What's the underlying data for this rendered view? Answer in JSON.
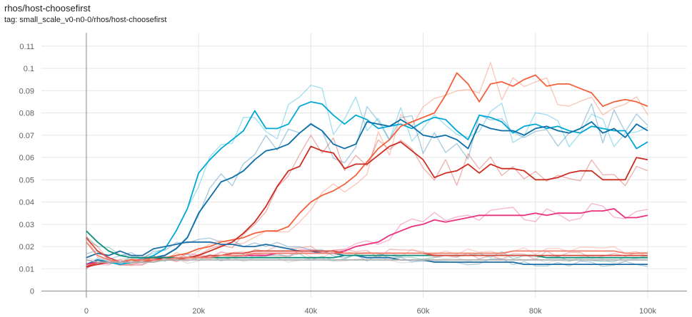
{
  "header": {
    "title": "rhos/host-choosefirst",
    "tag": "tag: small_scale_v0-n0-0/rhos/host-choosefirst"
  },
  "chart_data": {
    "type": "line",
    "title": "rhos/host-choosefirst",
    "xlabel": "",
    "ylabel": "",
    "xlim": [
      -8000,
      107000
    ],
    "ylim": [
      -0.003,
      0.116
    ],
    "grid": true,
    "x_ticks": [
      0,
      20000,
      40000,
      60000,
      80000,
      100000
    ],
    "x_tick_labels": [
      "0",
      "20k",
      "40k",
      "60k",
      "80k",
      "100k"
    ],
    "y_ticks": [
      0,
      0.01,
      0.02,
      0.03,
      0.04,
      0.05,
      0.06,
      0.07,
      0.08,
      0.09,
      0.1,
      0.11
    ],
    "y_tick_labels": [
      "0",
      "0.01",
      "0.02",
      "0.03",
      "0.04",
      "0.05",
      "0.06",
      "0.07",
      "0.08",
      "0.09",
      "0.1",
      "0.11"
    ],
    "series": [
      {
        "color": "#00a8d6",
        "x": [
          0,
          2000,
          4000,
          6000,
          8000,
          10000,
          12000,
          14000,
          16000,
          18000,
          20000,
          22000,
          24000,
          26000,
          28000,
          30000,
          32000,
          34000,
          36000,
          38000,
          40000,
          42000,
          44000,
          46000,
          48000,
          50000,
          52000,
          54000,
          56000,
          58000,
          60000,
          62000,
          64000,
          66000,
          68000,
          70000,
          72000,
          74000,
          76000,
          78000,
          80000,
          82000,
          84000,
          86000,
          88000,
          90000,
          92000,
          94000,
          96000,
          98000,
          100000
        ],
        "y": [
          0.012,
          0.014,
          0.013,
          0.012,
          0.013,
          0.014,
          0.016,
          0.019,
          0.027,
          0.037,
          0.053,
          0.059,
          0.064,
          0.068,
          0.072,
          0.081,
          0.073,
          0.073,
          0.075,
          0.083,
          0.085,
          0.084,
          0.079,
          0.075,
          0.079,
          0.077,
          0.073,
          0.074,
          0.075,
          0.073,
          0.076,
          0.078,
          0.077,
          0.072,
          0.068,
          0.079,
          0.078,
          0.076,
          0.071,
          0.074,
          0.075,
          0.073,
          0.074,
          0.072,
          0.071,
          0.074,
          0.073,
          0.072,
          0.072,
          0.064,
          0.067
        ]
      },
      {
        "color": "#0b6fa8",
        "x": [
          0,
          2000,
          4000,
          6000,
          8000,
          10000,
          12000,
          14000,
          16000,
          18000,
          20000,
          22000,
          24000,
          26000,
          28000,
          30000,
          32000,
          34000,
          36000,
          38000,
          40000,
          42000,
          44000,
          46000,
          48000,
          50000,
          52000,
          54000,
          56000,
          58000,
          60000,
          62000,
          64000,
          66000,
          68000,
          70000,
          72000,
          74000,
          76000,
          78000,
          80000,
          82000,
          84000,
          86000,
          88000,
          90000,
          92000,
          94000,
          96000,
          98000,
          100000
        ],
        "y": [
          0.012,
          0.014,
          0.013,
          0.013,
          0.014,
          0.014,
          0.015,
          0.016,
          0.019,
          0.024,
          0.035,
          0.042,
          0.049,
          0.051,
          0.054,
          0.059,
          0.063,
          0.064,
          0.066,
          0.071,
          0.075,
          0.072,
          0.066,
          0.064,
          0.066,
          0.076,
          0.075,
          0.074,
          0.077,
          0.074,
          0.07,
          0.069,
          0.07,
          0.068,
          0.064,
          0.075,
          0.073,
          0.072,
          0.072,
          0.07,
          0.073,
          0.074,
          0.072,
          0.071,
          0.073,
          0.076,
          0.071,
          0.073,
          0.069,
          0.075,
          0.072
        ]
      },
      {
        "color": "#f4603c",
        "x": [
          0,
          2000,
          4000,
          6000,
          8000,
          10000,
          12000,
          14000,
          16000,
          18000,
          20000,
          22000,
          24000,
          26000,
          28000,
          30000,
          32000,
          34000,
          36000,
          38000,
          40000,
          42000,
          44000,
          46000,
          48000,
          50000,
          52000,
          54000,
          56000,
          58000,
          60000,
          62000,
          64000,
          66000,
          68000,
          70000,
          72000,
          74000,
          76000,
          78000,
          80000,
          82000,
          84000,
          86000,
          88000,
          90000,
          92000,
          94000,
          96000,
          98000,
          100000
        ],
        "y": [
          0.011,
          0.013,
          0.013,
          0.013,
          0.014,
          0.014,
          0.015,
          0.015,
          0.016,
          0.017,
          0.019,
          0.02,
          0.022,
          0.023,
          0.024,
          0.026,
          0.027,
          0.027,
          0.029,
          0.035,
          0.04,
          0.043,
          0.045,
          0.048,
          0.052,
          0.058,
          0.064,
          0.068,
          0.074,
          0.076,
          0.078,
          0.08,
          0.088,
          0.098,
          0.093,
          0.085,
          0.093,
          0.094,
          0.092,
          0.095,
          0.097,
          0.092,
          0.093,
          0.093,
          0.091,
          0.089,
          0.083,
          0.085,
          0.086,
          0.085,
          0.083
        ]
      },
      {
        "color": "#cc2c22",
        "x": [
          0,
          2000,
          4000,
          6000,
          8000,
          10000,
          12000,
          14000,
          16000,
          18000,
          20000,
          22000,
          24000,
          26000,
          28000,
          30000,
          32000,
          34000,
          36000,
          38000,
          40000,
          42000,
          44000,
          46000,
          48000,
          50000,
          52000,
          54000,
          56000,
          58000,
          60000,
          62000,
          64000,
          66000,
          68000,
          70000,
          72000,
          74000,
          76000,
          78000,
          80000,
          82000,
          84000,
          86000,
          88000,
          90000,
          92000,
          94000,
          96000,
          98000,
          100000
        ],
        "y": [
          0.011,
          0.012,
          0.013,
          0.013,
          0.013,
          0.014,
          0.014,
          0.015,
          0.015,
          0.015,
          0.016,
          0.018,
          0.02,
          0.022,
          0.026,
          0.031,
          0.038,
          0.047,
          0.054,
          0.056,
          0.065,
          0.063,
          0.062,
          0.055,
          0.057,
          0.057,
          0.061,
          0.065,
          0.067,
          0.063,
          0.059,
          0.051,
          0.053,
          0.054,
          0.057,
          0.053,
          0.057,
          0.055,
          0.055,
          0.054,
          0.05,
          0.05,
          0.051,
          0.053,
          0.054,
          0.054,
          0.05,
          0.05,
          0.05,
          0.06,
          0.059
        ]
      },
      {
        "color": "#e8317f",
        "x": [
          0,
          2000,
          4000,
          6000,
          8000,
          10000,
          12000,
          14000,
          16000,
          18000,
          20000,
          22000,
          24000,
          26000,
          28000,
          30000,
          32000,
          34000,
          36000,
          38000,
          40000,
          42000,
          44000,
          46000,
          48000,
          50000,
          52000,
          54000,
          56000,
          58000,
          60000,
          62000,
          64000,
          66000,
          68000,
          70000,
          72000,
          74000,
          76000,
          78000,
          80000,
          82000,
          84000,
          86000,
          88000,
          90000,
          92000,
          94000,
          96000,
          98000,
          100000
        ],
        "y": [
          0.012,
          0.013,
          0.013,
          0.013,
          0.013,
          0.013,
          0.014,
          0.014,
          0.014,
          0.015,
          0.015,
          0.015,
          0.016,
          0.016,
          0.016,
          0.016,
          0.016,
          0.017,
          0.017,
          0.017,
          0.017,
          0.017,
          0.017,
          0.018,
          0.02,
          0.021,
          0.022,
          0.025,
          0.027,
          0.029,
          0.03,
          0.032,
          0.031,
          0.032,
          0.033,
          0.034,
          0.034,
          0.034,
          0.034,
          0.034,
          0.035,
          0.034,
          0.035,
          0.035,
          0.035,
          0.036,
          0.036,
          0.037,
          0.033,
          0.033,
          0.034
        ]
      },
      {
        "color": "#1f6fa7",
        "x": [
          0,
          2000,
          4000,
          6000,
          8000,
          10000,
          12000,
          14000,
          16000,
          18000,
          20000,
          22000,
          24000,
          26000,
          28000,
          30000,
          32000,
          34000,
          36000,
          38000,
          40000,
          42000,
          44000,
          46000,
          48000,
          50000,
          52000,
          54000,
          56000,
          58000,
          60000,
          62000,
          64000,
          66000,
          68000,
          70000,
          72000,
          74000,
          76000,
          78000,
          80000,
          82000,
          84000,
          86000,
          88000,
          90000,
          92000,
          94000,
          96000,
          98000,
          100000
        ],
        "y": [
          0.015,
          0.017,
          0.016,
          0.018,
          0.016,
          0.016,
          0.019,
          0.02,
          0.021,
          0.022,
          0.022,
          0.022,
          0.021,
          0.021,
          0.02,
          0.02,
          0.021,
          0.02,
          0.019,
          0.018,
          0.018,
          0.017,
          0.017,
          0.016,
          0.016,
          0.015,
          0.015,
          0.015,
          0.014,
          0.014,
          0.014,
          0.013,
          0.013,
          0.013,
          0.013,
          0.013,
          0.013,
          0.013,
          0.013,
          0.012,
          0.012,
          0.012,
          0.012,
          0.012,
          0.012,
          0.012,
          0.012,
          0.012,
          0.012,
          0.012,
          0.012
        ]
      },
      {
        "color": "#0e8f7e",
        "x": [
          0,
          2000,
          4000,
          6000,
          8000,
          10000,
          12000,
          14000,
          16000,
          18000,
          20000,
          22000,
          24000,
          26000,
          28000,
          30000,
          32000,
          34000,
          36000,
          38000,
          40000,
          42000,
          44000,
          46000,
          48000,
          50000,
          52000,
          54000,
          56000,
          58000,
          60000,
          62000,
          64000,
          66000,
          68000,
          70000,
          72000,
          74000,
          76000,
          78000,
          80000,
          82000,
          84000,
          86000,
          88000,
          90000,
          92000,
          94000,
          96000,
          98000,
          100000
        ],
        "y": [
          0.027,
          0.022,
          0.018,
          0.016,
          0.015,
          0.015,
          0.015,
          0.015,
          0.015,
          0.015,
          0.015,
          0.015,
          0.015,
          0.015,
          0.015,
          0.015,
          0.015,
          0.015,
          0.015,
          0.015,
          0.015,
          0.015,
          0.015,
          0.016,
          0.016,
          0.016,
          0.016,
          0.016,
          0.016,
          0.016,
          0.016,
          0.016,
          0.016,
          0.016,
          0.016,
          0.016,
          0.016,
          0.016,
          0.016,
          0.016,
          0.016,
          0.015,
          0.015,
          0.015,
          0.015,
          0.015,
          0.015,
          0.015,
          0.015,
          0.015,
          0.015
        ]
      },
      {
        "color": "#d9483b",
        "x": [
          0,
          2000,
          4000,
          6000,
          8000,
          10000,
          12000,
          14000,
          16000,
          18000,
          20000,
          22000,
          24000,
          26000,
          28000,
          30000,
          32000,
          34000,
          36000,
          38000,
          40000,
          42000,
          44000,
          46000,
          48000,
          50000,
          52000,
          54000,
          56000,
          58000,
          60000,
          62000,
          64000,
          66000,
          68000,
          70000,
          72000,
          74000,
          76000,
          78000,
          80000,
          82000,
          84000,
          86000,
          88000,
          90000,
          92000,
          94000,
          96000,
          98000,
          100000
        ],
        "y": [
          0.024,
          0.018,
          0.015,
          0.013,
          0.013,
          0.013,
          0.014,
          0.014,
          0.014,
          0.015,
          0.015,
          0.016,
          0.016,
          0.017,
          0.017,
          0.018,
          0.018,
          0.018,
          0.018,
          0.018,
          0.018,
          0.018,
          0.018,
          0.017,
          0.017,
          0.017,
          0.017,
          0.017,
          0.017,
          0.017,
          0.017,
          0.016,
          0.016,
          0.016,
          0.016,
          0.016,
          0.016,
          0.016,
          0.016,
          0.016,
          0.016,
          0.016,
          0.016,
          0.016,
          0.016,
          0.016,
          0.016,
          0.016,
          0.016,
          0.016,
          0.016
        ]
      },
      {
        "color": "#f08070",
        "x": [
          0,
          2000,
          4000,
          6000,
          8000,
          10000,
          12000,
          14000,
          16000,
          18000,
          20000,
          22000,
          24000,
          26000,
          28000,
          30000,
          32000,
          34000,
          36000,
          38000,
          40000,
          42000,
          44000,
          46000,
          48000,
          50000,
          52000,
          54000,
          56000,
          58000,
          60000,
          62000,
          64000,
          66000,
          68000,
          70000,
          72000,
          74000,
          76000,
          78000,
          80000,
          82000,
          84000,
          86000,
          88000,
          90000,
          92000,
          94000,
          96000,
          98000,
          100000
        ],
        "y": [
          0.022,
          0.016,
          0.014,
          0.013,
          0.013,
          0.014,
          0.014,
          0.014,
          0.015,
          0.015,
          0.015,
          0.015,
          0.016,
          0.016,
          0.016,
          0.017,
          0.017,
          0.017,
          0.017,
          0.017,
          0.017,
          0.017,
          0.017,
          0.017,
          0.017,
          0.017,
          0.017,
          0.017,
          0.017,
          0.017,
          0.017,
          0.017,
          0.017,
          0.017,
          0.017,
          0.017,
          0.017,
          0.017,
          0.018,
          0.018,
          0.018,
          0.018,
          0.018,
          0.018,
          0.018,
          0.018,
          0.018,
          0.018,
          0.017,
          0.017,
          0.017
        ]
      },
      {
        "color": "#b0b0b0",
        "x": [
          0,
          2000,
          4000,
          6000,
          8000,
          10000,
          12000,
          14000,
          16000,
          18000,
          20000,
          22000,
          24000,
          26000,
          28000,
          30000,
          32000,
          34000,
          36000,
          38000,
          40000,
          42000,
          44000,
          46000,
          48000,
          50000,
          52000,
          54000,
          56000,
          58000,
          60000,
          62000,
          64000,
          66000,
          68000,
          70000,
          72000,
          74000,
          76000,
          78000,
          80000,
          82000,
          84000,
          86000,
          88000,
          90000,
          92000,
          94000,
          96000,
          98000,
          100000
        ],
        "y": [
          0.014,
          0.013,
          0.013,
          0.013,
          0.013,
          0.013,
          0.013,
          0.014,
          0.014,
          0.014,
          0.014,
          0.014,
          0.014,
          0.014,
          0.014,
          0.014,
          0.014,
          0.014,
          0.014,
          0.014,
          0.014,
          0.014,
          0.014,
          0.014,
          0.014,
          0.014,
          0.014,
          0.014,
          0.014,
          0.014,
          0.014,
          0.014,
          0.014,
          0.014,
          0.014,
          0.014,
          0.014,
          0.014,
          0.014,
          0.014,
          0.014,
          0.014,
          0.014,
          0.014,
          0.014,
          0.014,
          0.014,
          0.014,
          0.014,
          0.014,
          0.014
        ]
      }
    ]
  }
}
